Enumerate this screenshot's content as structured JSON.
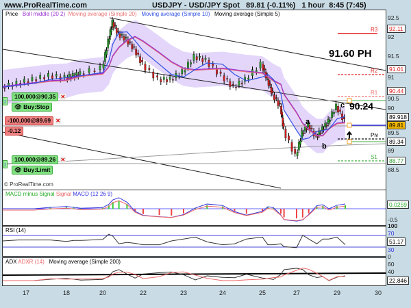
{
  "header": {
    "site": "www.ProRealTime.com",
    "instrument": "USDJPY - USD/JPY Spot",
    "price": "89.81 (-0.11%)",
    "timeframe": "1 hour",
    "time": "8:45 (7:45)"
  },
  "legend": {
    "price": "Price",
    "boll": "Boll middle (20 2)",
    "ma20": "Moving average (Simple 20)",
    "ma10": "Moving average (Simple 10)",
    "ma5": "Moving average (Simple 5)"
  },
  "colors": {
    "boll": "#9b30d0",
    "ma20": "#e87070",
    "ma10": "#3050e0",
    "band": "#e3d6fa",
    "up": "#2a9a2a",
    "down": "#d02020"
  },
  "annotations": {
    "ph": "91.60 PH",
    "c_label": "c",
    "c_value": "90.24",
    "a": "a",
    "b": "b",
    "watermark": "© ProRealTime.com"
  },
  "pivots": [
    {
      "name": "R3",
      "value": "92.11",
      "color": "#e02020",
      "style": "solid"
    },
    {
      "name": "R2",
      "value": "91.01",
      "color": "#e02020",
      "style": "dashed"
    },
    {
      "name": "R1",
      "value": "90.44",
      "color": "#f07070",
      "style": "dashed"
    },
    {
      "name": "Piv",
      "value": "89.34",
      "color": "#111",
      "style": "dashed"
    },
    {
      "name": "S1",
      "value": "88.77",
      "color": "#40b040",
      "style": "dashed"
    }
  ],
  "price_axis": [
    "92.5",
    "92",
    "91.5",
    "91",
    "90.5",
    "90",
    "89.5",
    "89",
    "88.5"
  ],
  "price_boxes": {
    "last": "89.81",
    "other": "89.918"
  },
  "orders": [
    {
      "label": "100,000@90.35",
      "action": "Buy:Stop"
    },
    {
      "label": "-100,000@89.69",
      "pnl": "-0.12"
    },
    {
      "label": "100,000@89.26",
      "action": "Buy:Limit"
    }
  ],
  "macd": {
    "legend_hist": "MACD minus Signal",
    "legend_signal": "Signal",
    "legend_macd": "MACD (12 26 9)",
    "value": "0.0259",
    "tick": "-0.5"
  },
  "rsi": {
    "legend": "RSI (14)",
    "ticks": [
      "100",
      "70",
      "30",
      "0"
    ],
    "value": "51.17"
  },
  "adx": {
    "legend_adx": "ADX",
    "legend_adxr": "ADXR (14)",
    "legend_ma": "Moving average (Simple 200)",
    "ticks": [
      "60",
      "40"
    ],
    "value": "22.846"
  },
  "x_axis": [
    "17",
    "18",
    "20",
    "22",
    "23",
    "24",
    "25",
    "27",
    "29",
    "30"
  ],
  "chart_data": {
    "type": "line",
    "x": [
      16.4,
      16.8,
      17.2,
      17.6,
      18,
      18.4,
      18.8,
      20,
      20.3,
      20.5,
      20.8,
      21.2,
      21.6,
      22,
      22.4,
      22.7,
      23,
      23.3,
      23.6,
      24,
      24.3,
      24.6,
      25,
      25.3,
      25.6,
      26,
      26.2,
      27,
      27.3,
      27.6,
      28,
      28.3,
      28.6,
      29,
      29.2
    ],
    "price": [
      90.7,
      90.8,
      90.9,
      91.0,
      90.95,
      91.0,
      91.05,
      91.2,
      91.9,
      92.4,
      92.1,
      91.95,
      91.7,
      91.3,
      90.9,
      90.9,
      91.1,
      91.5,
      91.4,
      91.0,
      90.7,
      90.9,
      91.3,
      90.9,
      90.5,
      90.2,
      89.6,
      88.9,
      89.5,
      89.7,
      89.4,
      89.6,
      89.8,
      90.2,
      89.81
    ],
    "ylim": [
      88.3,
      92.7
    ]
  }
}
